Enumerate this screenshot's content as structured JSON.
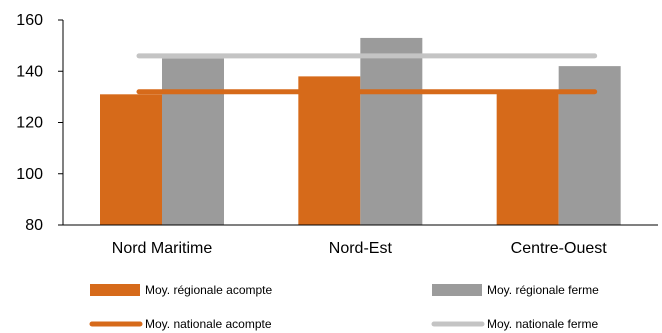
{
  "chart_data": {
    "type": "bar",
    "categories": [
      "Nord Maritime",
      "Nord-Est",
      "Centre-Ouest"
    ],
    "series": [
      {
        "name": "Moy. régionale acompte",
        "values": [
          131,
          138,
          132
        ],
        "color": "#d66a1a"
      },
      {
        "name": "Moy. régionale ferme",
        "values": [
          145,
          153,
          142
        ],
        "color": "#9b9b9b"
      }
    ],
    "reference_lines": [
      {
        "name": "Moy. nationale acompte",
        "value": 132,
        "color": "#d66a1a"
      },
      {
        "name": "Moy. nationale ferme",
        "value": 146,
        "color": "#c4c4c4"
      }
    ],
    "y_ticks": [
      "80",
      "100",
      "120",
      "140",
      "160"
    ],
    "ylim": [
      80,
      160
    ],
    "grid": false,
    "legend_position": "bottom",
    "title": "",
    "xlabel": "",
    "ylabel": ""
  }
}
